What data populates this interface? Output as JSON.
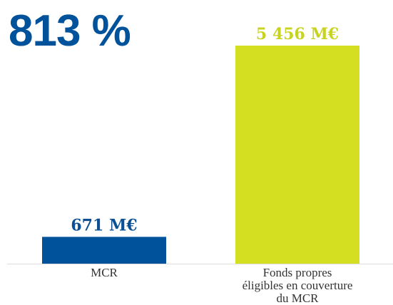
{
  "chart_data": {
    "type": "bar",
    "annotation": "813 %",
    "categories": [
      "MCR",
      "Fonds propres\néligibles en couverture\ndu MCR"
    ],
    "values": [
      671,
      5456
    ],
    "value_labels": [
      "671 M€",
      "5 456 M€"
    ],
    "colors": [
      "#00529b",
      "#d4df22"
    ],
    "label_colors": [
      "#0b4f94",
      "#c7d31c"
    ],
    "annotation_color": "#00529b",
    "ylim": [
      0,
      6000
    ]
  }
}
